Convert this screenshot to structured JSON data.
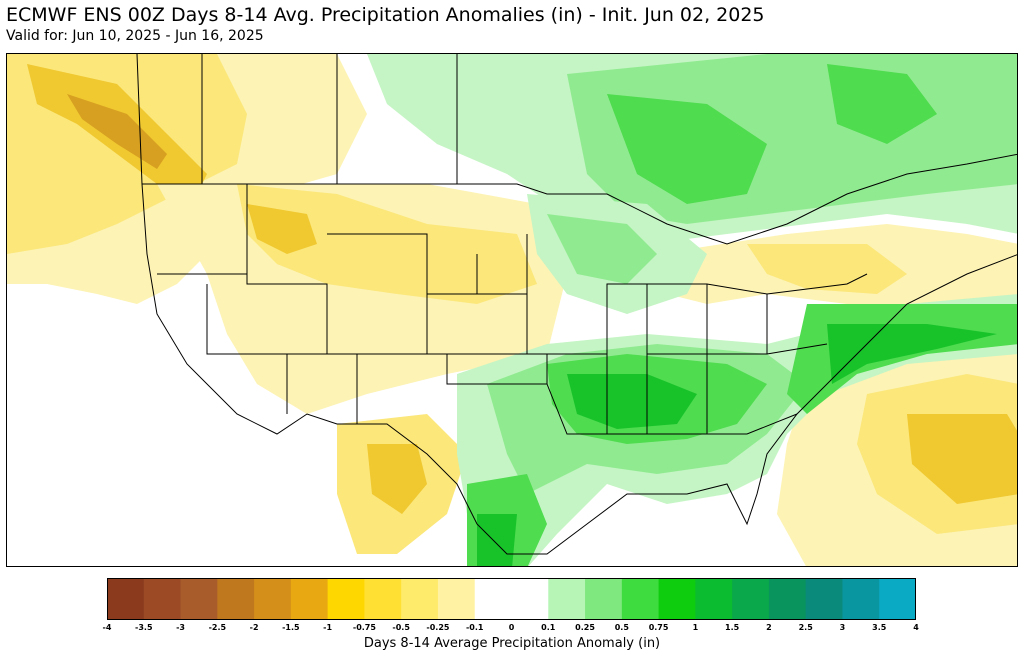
{
  "title": "ECMWF ENS 00Z Days 8-14 Avg. Precipitation Anomalies (in) - Init. Jun 02, 2025",
  "subtitle": "Valid for: Jun 10, 2025 - Jun 16, 2025",
  "colorbar": {
    "title": "Days 8-14 Average Precipitation Anomaly (in)",
    "ticks": [
      "-4",
      "-3.5",
      "-3",
      "-2.5",
      "-2",
      "-1.5",
      "-1",
      "-0.75",
      "-0.5",
      "-0.25",
      "-0.1",
      "0",
      "0.1",
      "0.25",
      "0.5",
      "0.75",
      "1",
      "1.5",
      "2",
      "2.5",
      "3",
      "3.5",
      "4"
    ],
    "colors": [
      "#8b3a1e",
      "#9b4a25",
      "#a85c2c",
      "#c0781f",
      "#d48f1a",
      "#e8a812",
      "#ffd700",
      "#ffe033",
      "#ffeb6b",
      "#fff3a3",
      "#ffffff",
      "#ffffff",
      "#b6f5b6",
      "#7fe87f",
      "#3fdc3f",
      "#0ecc0e",
      "#0bbb30",
      "#0aa84a",
      "#09945e",
      "#0a8a7a",
      "#0a96a0",
      "#0aa9c4"
    ]
  },
  "colors": {
    "dry_strong": "#c98a14",
    "dry_moderate": "#f0c830",
    "dry_light": "#fbe77a",
    "dry_faint": "#fdf3b4",
    "neutral": "#ffffff",
    "wet_faint": "#c5f5c5",
    "wet_light": "#90eb90",
    "wet_moderate": "#4fdc4f",
    "wet_strong": "#18c32a",
    "wet_heavy": "#0aa84a"
  }
}
